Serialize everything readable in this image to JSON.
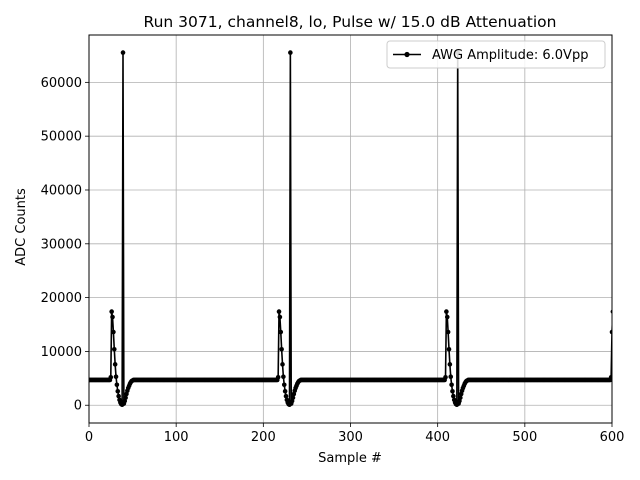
{
  "chart_data": {
    "type": "line",
    "title": "Run 3071, channel8, lo, Pulse w/ 15.0 dB Attenuation",
    "xlabel": "Sample #",
    "ylabel": "ADC Counts",
    "xlim": [
      0,
      600
    ],
    "ylim": [
      -3300,
      68800
    ],
    "x_ticks": [
      0,
      100,
      200,
      300,
      400,
      500,
      600
    ],
    "y_ticks": [
      0,
      10000,
      20000,
      30000,
      40000,
      50000,
      60000
    ],
    "grid": true,
    "legend_position": "top-right",
    "baseline": 4700,
    "series": [
      {
        "name": "AWG Amplitude: 6.0Vpp",
        "color": "#000000",
        "marker": "circle",
        "pulse_period": 192,
        "sample_count": 601,
        "pulse_shape": [
          {
            "offset": 0,
            "value": 5200
          },
          {
            "offset": 1,
            "value": 17400
          },
          {
            "offset": 2,
            "value": 16400
          },
          {
            "offset": 3,
            "value": 13600
          },
          {
            "offset": 4,
            "value": 10400
          },
          {
            "offset": 5,
            "value": 7600
          },
          {
            "offset": 6,
            "value": 5300
          },
          {
            "offset": 7,
            "value": 3800
          },
          {
            "offset": 8,
            "value": 2600
          },
          {
            "offset": 9,
            "value": 1700
          },
          {
            "offset": 10,
            "value": 1000
          },
          {
            "offset": 11,
            "value": 500
          },
          {
            "offset": 12,
            "value": 200
          },
          {
            "offset": 13,
            "value": 100
          },
          {
            "offset": 14,
            "value": 65535
          },
          {
            "offset": 15,
            "value": 300
          },
          {
            "offset": 16,
            "value": 800
          },
          {
            "offset": 17,
            "value": 1400
          },
          {
            "offset": 18,
            "value": 2100
          },
          {
            "offset": 19,
            "value": 2700
          },
          {
            "offset": 20,
            "value": 3200
          },
          {
            "offset": 21,
            "value": 3600
          },
          {
            "offset": 22,
            "value": 4000
          },
          {
            "offset": 23,
            "value": 4300
          },
          {
            "offset": 24,
            "value": 4500
          },
          {
            "offset": 25,
            "value": 4600
          },
          {
            "offset": 26,
            "value": 4700
          }
        ],
        "pulse_starts": [
          25,
          217,
          409
        ],
        "tail": [
          {
            "x": 599,
            "value": 5200
          },
          {
            "x": 600,
            "value": 13600
          },
          {
            "x": 601,
            "value": 17400
          }
        ]
      }
    ]
  }
}
